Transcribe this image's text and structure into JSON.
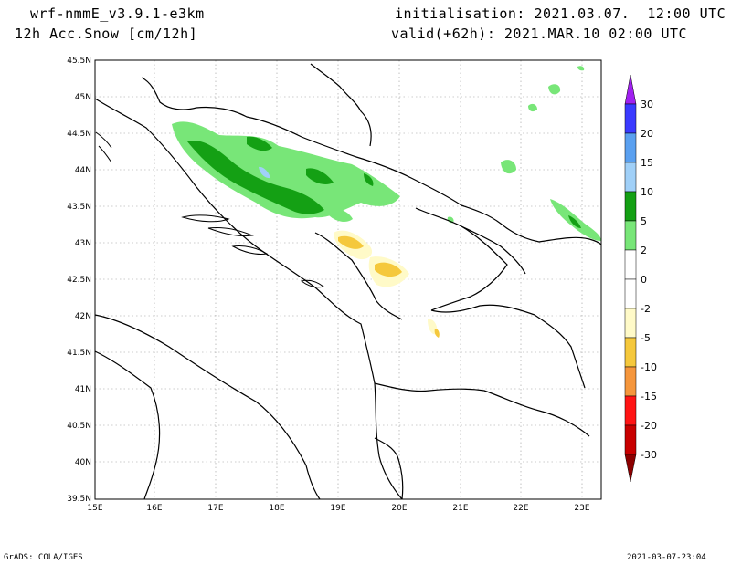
{
  "header": {
    "model": "wrf-nmmE_v3.9.1-e3km",
    "variable": "12h Acc.Snow [cm/12h]",
    "initialisation": "initialisation: 2021.03.07.  12:00 UTC",
    "valid": "valid(+62h): 2021.MAR.10 02:00 UTC"
  },
  "map": {
    "lon_range": [
      15,
      23.3
    ],
    "lat_range": [
      39.5,
      45.5
    ],
    "lon_ticks": [
      "15E",
      "16E",
      "17E",
      "18E",
      "19E",
      "20E",
      "21E",
      "22E",
      "23E"
    ],
    "lat_ticks": [
      "45.5N",
      "45N",
      "44.5N",
      "44N",
      "43.5N",
      "43N",
      "42.5N",
      "42N",
      "41.5N",
      "41N",
      "40.5N",
      "40N",
      "39.5N"
    ],
    "grid": "dotted"
  },
  "colorbar": {
    "labels": [
      "30",
      "20",
      "15",
      "10",
      "5",
      "2",
      "0",
      "-2",
      "-5",
      "-10",
      "-15",
      "-20",
      "-30"
    ],
    "colors": {
      "top_arrow": "#a020f0",
      "b30_20": "#3a3aff",
      "b20_15": "#5aa0f0",
      "b15_10": "#a0d0f8",
      "b10_5": "#14a014",
      "b5_2": "#78e678",
      "b2_0": "#ffffff",
      "b0_m2": "#ffffff",
      "bm2_m5": "#fffac8",
      "bm5_m10": "#f5c83c",
      "bm10_m15": "#f5963c",
      "bm15_m20": "#ff1414",
      "bm20_m30": "#c80000",
      "bottom_arrow": "#8c0000"
    }
  },
  "footer": {
    "left": "GrADS: COLA/IGES",
    "right": "2021-03-07-23:04"
  }
}
